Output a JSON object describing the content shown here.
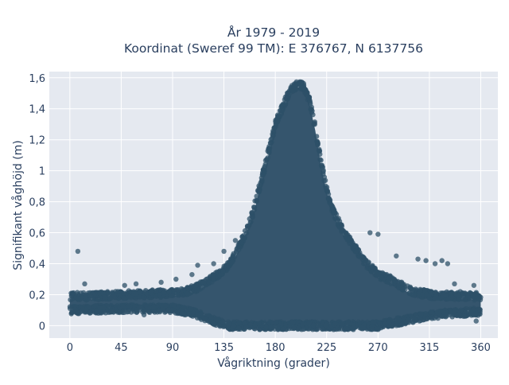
{
  "chart_data": {
    "type": "scatter",
    "title_line1": "År 1979 - 2019",
    "title_line2": "Koordinat (Sweref 99 TM): E 376767, N 6137756",
    "xlabel": "Vågriktning (grader)",
    "ylabel": "Signifikant våghöjd (m)",
    "xlim": [
      -18,
      375
    ],
    "ylim": [
      -0.08,
      1.64
    ],
    "xticks": [
      0,
      45,
      90,
      135,
      180,
      225,
      270,
      315,
      360
    ],
    "xtick_labels": [
      "0",
      "45",
      "90",
      "135",
      "180",
      "225",
      "270",
      "315",
      "360"
    ],
    "yticks": [
      0,
      0.2,
      0.4,
      0.6,
      0.8,
      1.0,
      1.2,
      1.4,
      1.6
    ],
    "ytick_labels": [
      "0",
      "0,2",
      "0,4",
      "0,6",
      "0,8",
      "1",
      "1,2",
      "1,4",
      "1,6"
    ],
    "grid": true,
    "marker_color": "#2e5068",
    "plot_bg": "#e5e9f0",
    "envelope_upper": [
      [
        0,
        0.19
      ],
      [
        20,
        0.19
      ],
      [
        45,
        0.2
      ],
      [
        90,
        0.21
      ],
      [
        100,
        0.22
      ],
      [
        110,
        0.24
      ],
      [
        120,
        0.28
      ],
      [
        130,
        0.33
      ],
      [
        140,
        0.4
      ],
      [
        150,
        0.53
      ],
      [
        160,
        0.72
      ],
      [
        170,
        1.0
      ],
      [
        180,
        1.3
      ],
      [
        190,
        1.47
      ],
      [
        195,
        1.53
      ],
      [
        200,
        1.56
      ],
      [
        205,
        1.54
      ],
      [
        210,
        1.45
      ],
      [
        215,
        1.28
      ],
      [
        220,
        1.05
      ],
      [
        225,
        0.88
      ],
      [
        230,
        0.75
      ],
      [
        240,
        0.6
      ],
      [
        250,
        0.5
      ],
      [
        260,
        0.4
      ],
      [
        270,
        0.33
      ],
      [
        280,
        0.3
      ],
      [
        290,
        0.26
      ],
      [
        300,
        0.22
      ],
      [
        315,
        0.2
      ],
      [
        340,
        0.19
      ],
      [
        360,
        0.19
      ]
    ],
    "envelope_lower": [
      [
        0,
        0.1
      ],
      [
        45,
        0.11
      ],
      [
        90,
        0.11
      ],
      [
        110,
        0.08
      ],
      [
        120,
        0.05
      ],
      [
        130,
        0.02
      ],
      [
        140,
        0.0
      ],
      [
        270,
        0.0
      ],
      [
        290,
        0.03
      ],
      [
        310,
        0.06
      ],
      [
        330,
        0.08
      ],
      [
        360,
        0.09
      ]
    ],
    "outliers": [
      {
        "x": 7,
        "y": 0.48
      },
      {
        "x": 13,
        "y": 0.27
      },
      {
        "x": 48,
        "y": 0.26
      },
      {
        "x": 58,
        "y": 0.27
      },
      {
        "x": 65,
        "y": 0.07
      },
      {
        "x": 80,
        "y": 0.28
      },
      {
        "x": 93,
        "y": 0.3
      },
      {
        "x": 107,
        "y": 0.33
      },
      {
        "x": 112,
        "y": 0.39
      },
      {
        "x": 126,
        "y": 0.4
      },
      {
        "x": 135,
        "y": 0.48
      },
      {
        "x": 145,
        "y": 0.55
      },
      {
        "x": 263,
        "y": 0.6
      },
      {
        "x": 270,
        "y": 0.59
      },
      {
        "x": 286,
        "y": 0.45
      },
      {
        "x": 305,
        "y": 0.43
      },
      {
        "x": 312,
        "y": 0.42
      },
      {
        "x": 320,
        "y": 0.4
      },
      {
        "x": 326,
        "y": 0.42
      },
      {
        "x": 331,
        "y": 0.4
      },
      {
        "x": 337,
        "y": 0.27
      },
      {
        "x": 342,
        "y": 0.22
      },
      {
        "x": 354,
        "y": 0.26
      },
      {
        "x": 356,
        "y": 0.03
      },
      {
        "x": 341,
        "y": 0.07
      }
    ]
  }
}
